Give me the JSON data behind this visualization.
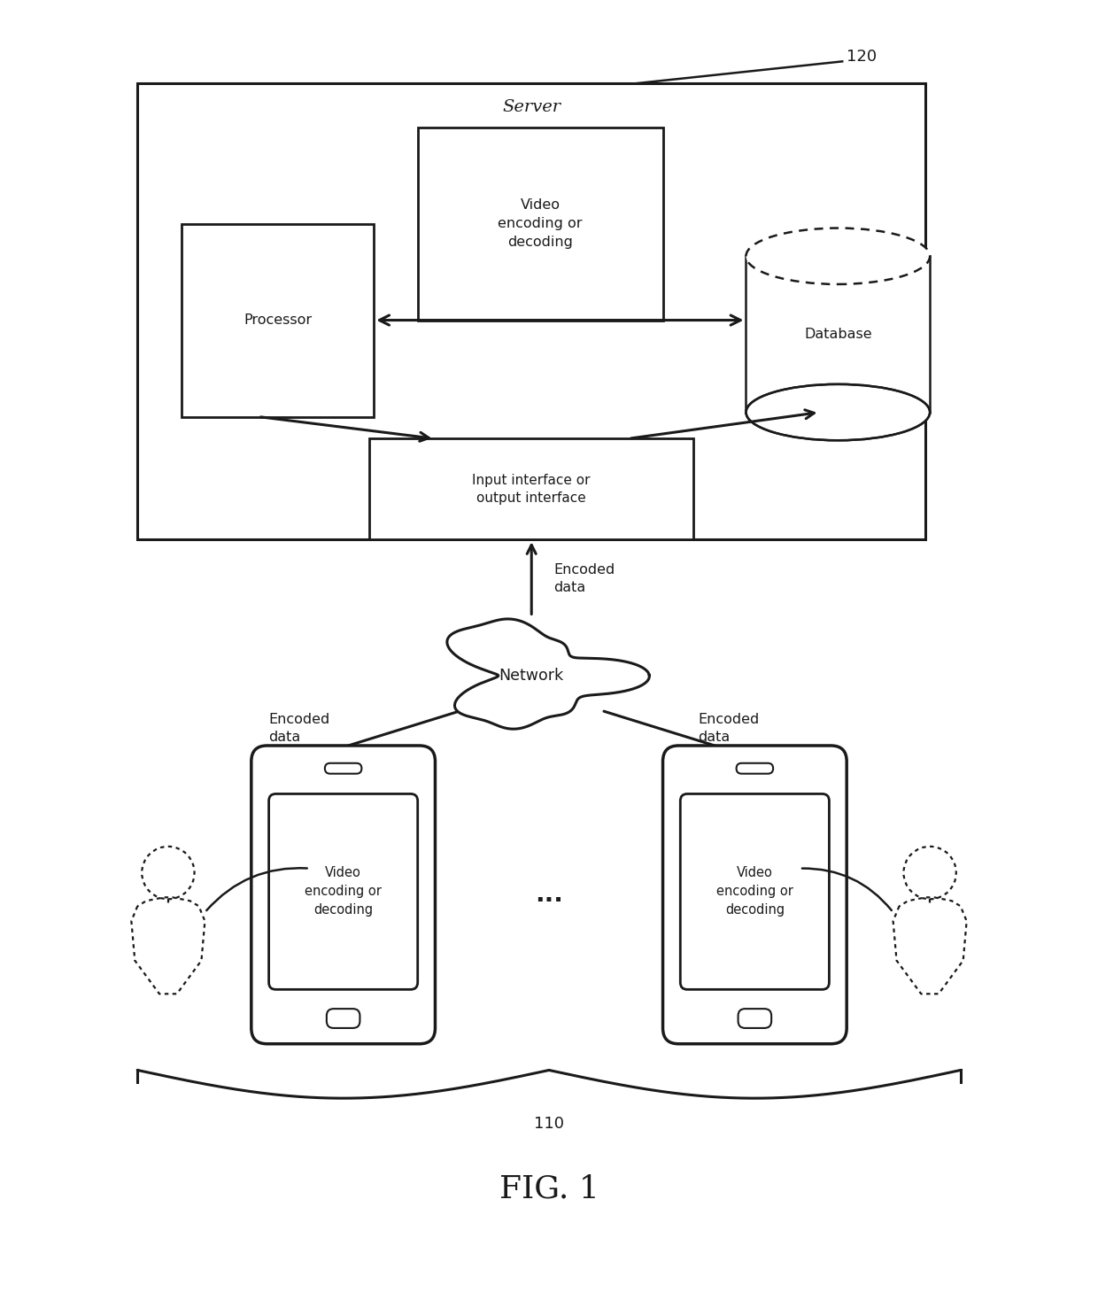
{
  "fig_width": 12.4,
  "fig_height": 14.68,
  "bg_color": "#ffffff",
  "line_color": "#1a1a1a",
  "text_color": "#1a1a1a",
  "label_120": "120",
  "label_110": "110",
  "label_fig": "FIG. 1",
  "server_label": "Server",
  "processor_label": "Processor",
  "video_enc_label": "Video\nencoding or\ndecoding",
  "database_label": "Database",
  "io_label": "Input interface or\noutput interface",
  "network_label": "Network",
  "encoded_data_top": "Encoded\ndata",
  "encoded_data_left": "Encoded\ndata",
  "encoded_data_right": "Encoded\ndata",
  "dots_label": "..."
}
